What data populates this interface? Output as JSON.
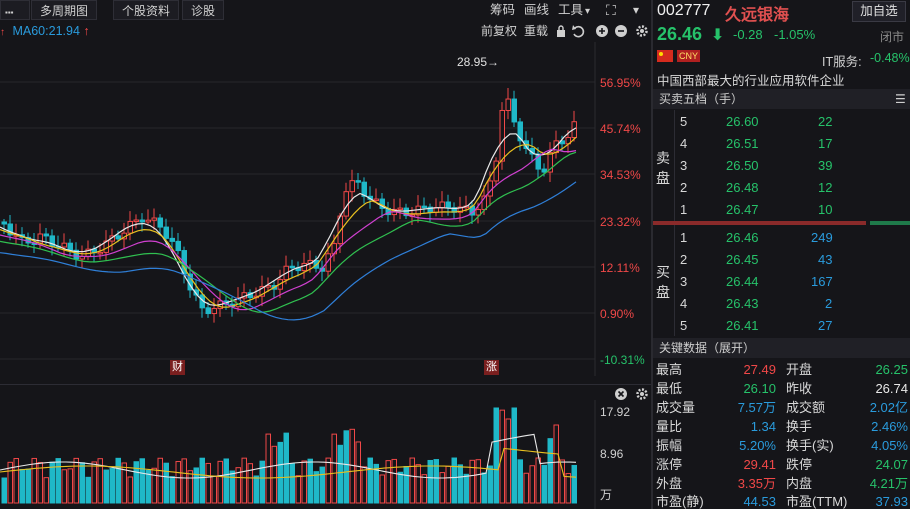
{
  "toolbar": {
    "menu_glyph": "▪▪▪",
    "period": "多周期图",
    "stock_info": "个股资料",
    "diagnose": "诊股",
    "chips": "筹码",
    "draw_line": "画线",
    "tools": "工具",
    "tools_caret": "▾",
    "expand_glyph": "⛶",
    "collapse_glyph": "▾"
  },
  "indicator_bar": {
    "ma60": "MA60:21.94",
    "ma60_arrow": "↑",
    "pre_adjust": "前复权",
    "reset": "重载"
  },
  "stock": {
    "code": "002777",
    "name": "久远银海",
    "add_watchlist": "加自选",
    "price": "26.46",
    "change": "-0.28",
    "change_pct": "-1.05%",
    "status": "闭市",
    "sector_label": "IT服务:",
    "sector_change": "-0.48%",
    "currency_badge": "CNY",
    "description": "中国西部最大的行业应用软件企业"
  },
  "chart_data": {
    "type": "candlestick",
    "title": "",
    "y_axis_pct_labels": [
      "56.95%",
      "45.74%",
      "34.53%",
      "23.32%",
      "12.11%",
      "0.90%",
      "-10.31%"
    ],
    "high_marker": "28.95→",
    "event_markers": [
      "财",
      "涨"
    ],
    "volume_axis_labels": [
      "17.92",
      "8.96",
      "万"
    ],
    "colors": {
      "up": "#f04848",
      "down": "#1fb8c8",
      "ma5": "#e8e8e8",
      "ma10": "#e8c020",
      "ma20": "#d040d0",
      "ma30": "#30c050",
      "ma60": "#2f7fd8"
    }
  },
  "order_book": {
    "header": "买卖五档（手）",
    "sell_label": [
      "卖",
      "盘"
    ],
    "buy_label": [
      "买",
      "盘"
    ],
    "asks": [
      {
        "level": "5",
        "price": "26.60",
        "volume": "22"
      },
      {
        "level": "4",
        "price": "26.51",
        "volume": "17"
      },
      {
        "level": "3",
        "price": "26.50",
        "volume": "39"
      },
      {
        "level": "2",
        "price": "26.48",
        "volume": "12"
      },
      {
        "level": "1",
        "price": "26.47",
        "volume": "10"
      }
    ],
    "bids": [
      {
        "level": "1",
        "price": "26.46",
        "volume": "249"
      },
      {
        "level": "2",
        "price": "26.45",
        "volume": "43"
      },
      {
        "level": "3",
        "price": "26.44",
        "volume": "167"
      },
      {
        "level": "4",
        "price": "26.43",
        "volume": "2"
      },
      {
        "level": "5",
        "price": "26.41",
        "volume": "27"
      }
    ]
  },
  "key_data": {
    "header": "关键数据（展开）",
    "rows": [
      {
        "l1": "最高",
        "v1": "27.49",
        "l2": "开盘",
        "v2": "26.25"
      },
      {
        "l1": "最低",
        "v1": "26.10",
        "l2": "昨收",
        "v2": "26.74"
      },
      {
        "l1": "成交量",
        "v1": "7.57万",
        "l2": "成交额",
        "v2": "2.02亿"
      },
      {
        "l1": "量比",
        "v1": "1.34",
        "l2": "换手",
        "v2": "2.46%"
      },
      {
        "l1": "振幅",
        "v1": "5.20%",
        "l2": "换手(实)",
        "v2": "4.05%"
      },
      {
        "l1": "涨停",
        "v1": "29.41",
        "l2": "跌停",
        "v2": "24.07"
      },
      {
        "l1": "外盘",
        "v1": "3.35万",
        "l2": "内盘",
        "v2": "4.21万"
      },
      {
        "l1": "市盈(静)",
        "v1": "44.53",
        "l2": "市盈(TTM)",
        "v2": "37.93"
      }
    ]
  }
}
